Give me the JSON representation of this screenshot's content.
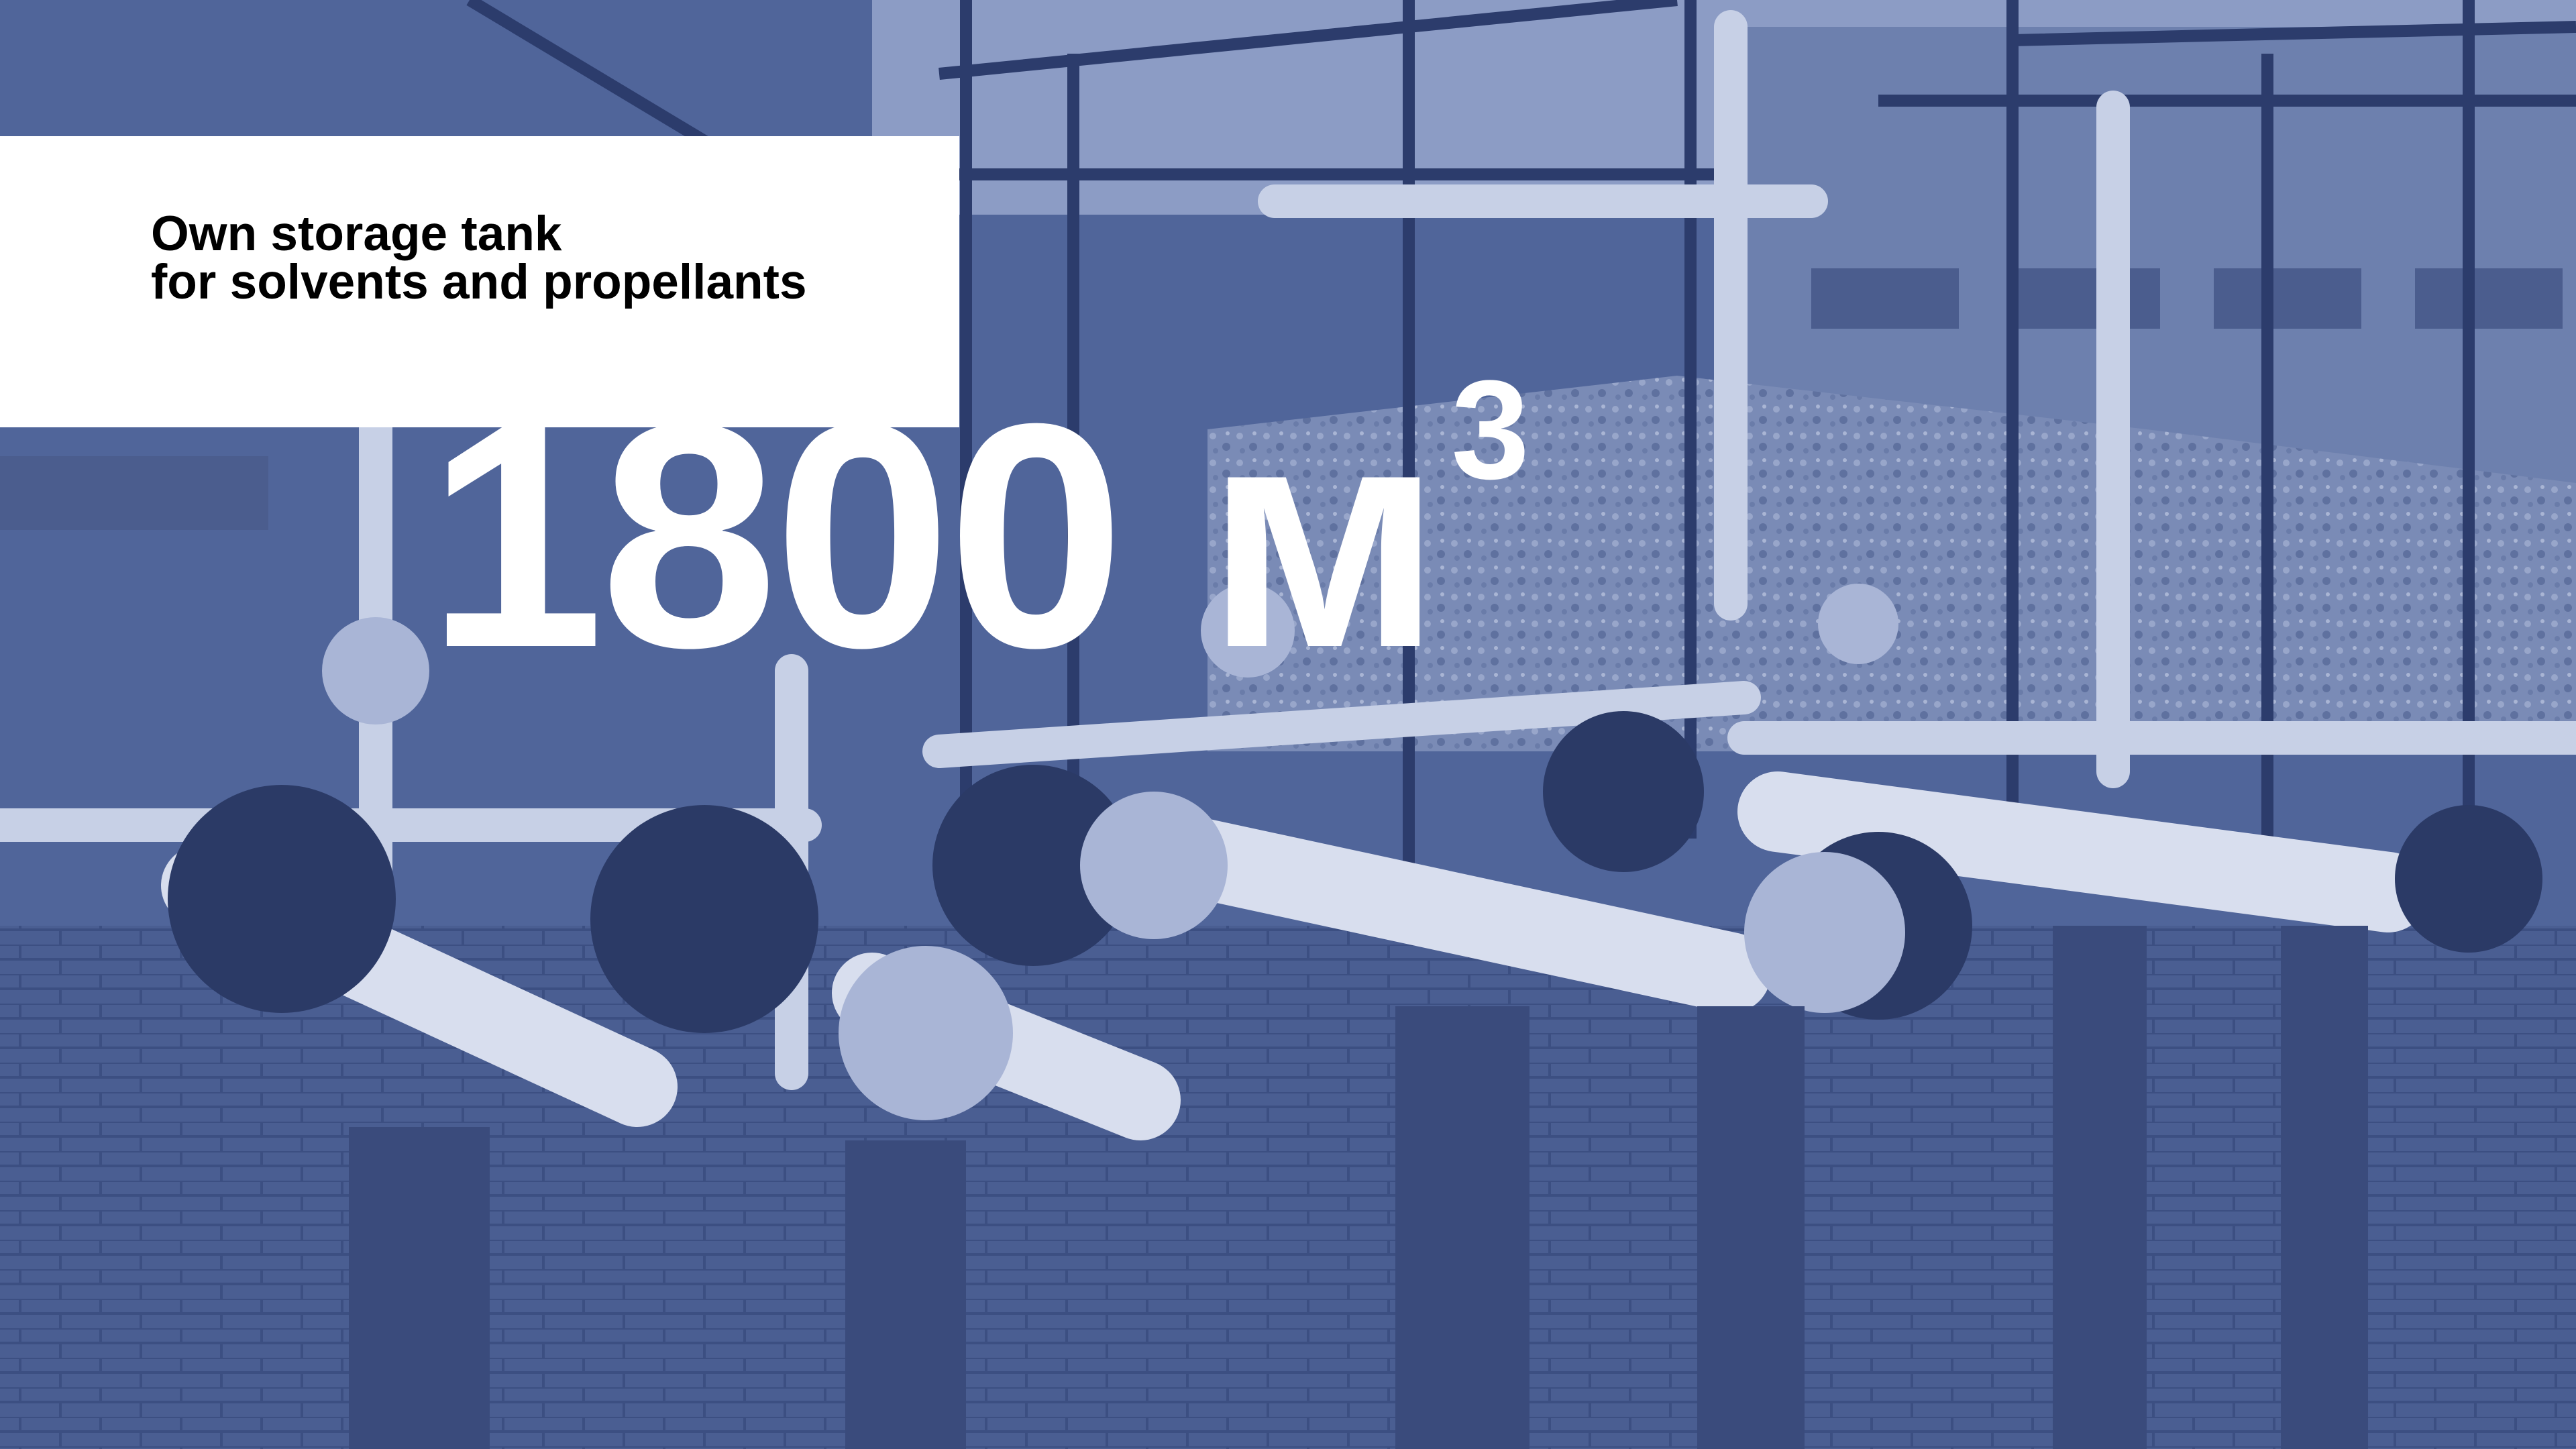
{
  "caption": {
    "line1": "Own storage tank",
    "line2": "for solvents and propellants"
  },
  "figure": {
    "value": "1800 м",
    "superscript": "3"
  }
}
